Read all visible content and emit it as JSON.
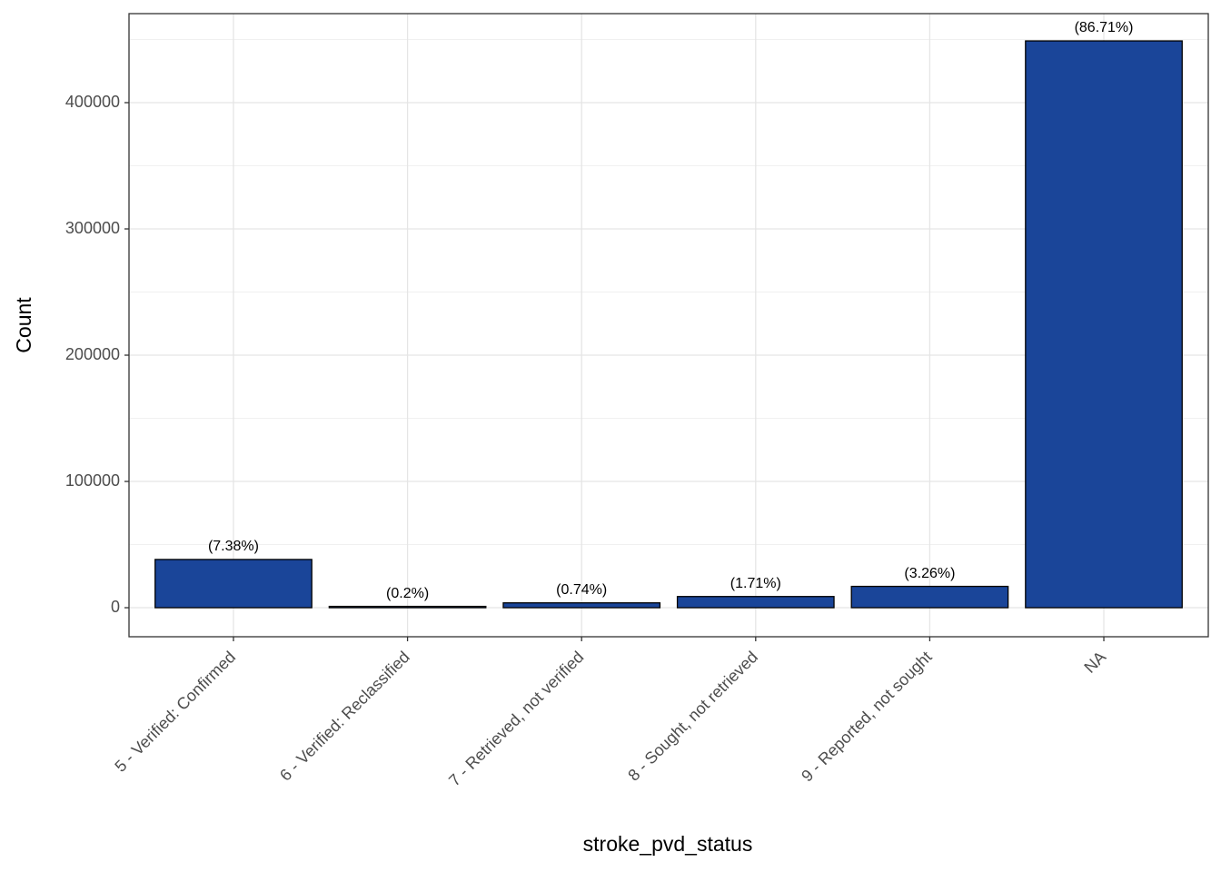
{
  "chart_data": {
    "type": "bar",
    "x_label": "stroke_pvd_status",
    "y_label": "Count",
    "categories": [
      "5 - Verified: Confirmed",
      "6 - Verified: Reclassified",
      "7 - Retrieved, not verified",
      "8 - Sought, not retrieved",
      "9 - Reported, not sought",
      "NA"
    ],
    "values": [
      38200,
      1040,
      3830,
      8850,
      16880,
      448900
    ],
    "bar_labels": [
      "(7.38%)",
      "(0.2%)",
      "(0.74%)",
      "(1.71%)",
      "(3.26%)",
      "(86.71%)"
    ],
    "color": "#1a4599",
    "ylim": [
      -23000,
      470500
    ],
    "yticks": [
      0,
      100000,
      200000,
      300000,
      400000
    ],
    "minor_yticks": [
      50000,
      150000,
      250000,
      350000,
      450000
    ],
    "grid": true
  }
}
